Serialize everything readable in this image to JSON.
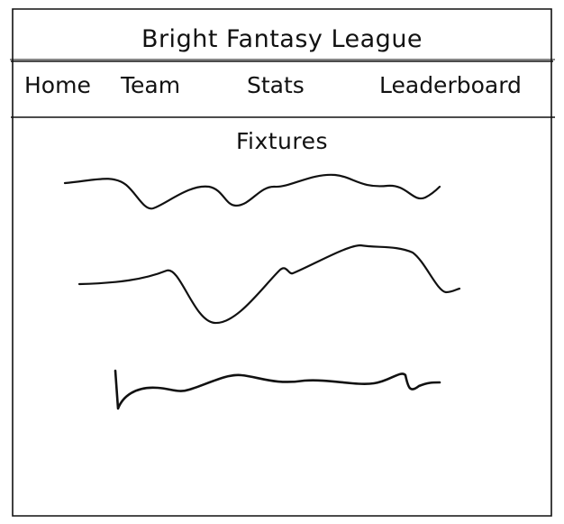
{
  "app": {
    "title": "Bright Fantasy League"
  },
  "nav": {
    "items": [
      "Home",
      "Team",
      "Stats",
      "Leaderboard"
    ]
  },
  "main": {
    "heading": "Fixtures"
  }
}
